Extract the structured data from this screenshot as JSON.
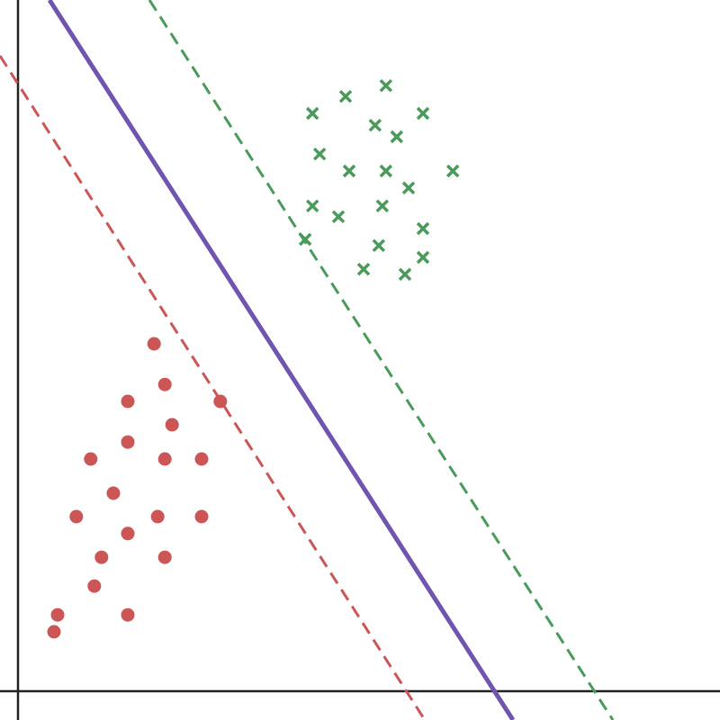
{
  "chart_data": {
    "type": "scatter",
    "xlim": [
      -0.5,
      19.5
    ],
    "ylim": [
      -0.8,
      19.2
    ],
    "axes_through_origin": true,
    "series": [
      {
        "marker": "circle",
        "color": "#cc5555",
        "x": [
          3.78,
          4.08,
          3.05,
          5.62,
          4.28,
          3.05,
          2.02,
          4.08,
          5.1,
          2.65,
          1.62,
          3.88,
          5.1,
          3.05,
          2.32,
          4.08,
          2.12,
          1.1,
          3.05,
          1.0
        ],
        "values": [
          9.65,
          8.52,
          8.05,
          8.05,
          7.4,
          6.92,
          6.45,
          6.45,
          6.45,
          5.5,
          4.85,
          4.85,
          4.85,
          4.38,
          3.72,
          3.72,
          2.92,
          2.12,
          2.12,
          1.65
        ]
      },
      {
        "marker": "cross",
        "color": "#4a9a5a",
        "x": [
          10.22,
          9.1,
          8.18,
          11.25,
          9.92,
          10.52,
          8.38,
          9.2,
          10.22,
          12.08,
          10.85,
          8.18,
          8.9,
          10.12,
          11.25,
          7.98,
          10.02,
          11.25,
          9.6,
          10.75
        ],
        "values": [
          16.82,
          16.52,
          16.05,
          16.05,
          15.72,
          15.4,
          14.92,
          14.45,
          14.45,
          14.45,
          13.98,
          13.48,
          13.18,
          13.48,
          12.85,
          12.55,
          12.38,
          12.05,
          11.72,
          11.58
        ]
      },
      {
        "marker": "line",
        "color": "#cc5555",
        "dashed": true,
        "width": 3,
        "x": [
          -0.5,
          11.3
        ],
        "values": [
          17.65,
          -0.8
        ]
      },
      {
        "marker": "line",
        "color": "#7055b0",
        "dashed": false,
        "width": 5,
        "x": [
          0.875,
          13.75
        ],
        "values": [
          19.2,
          -0.8
        ]
      },
      {
        "marker": "line",
        "color": "#4a9a5a",
        "dashed": true,
        "width": 3,
        "x": [
          3.65,
          16.525
        ],
        "values": [
          19.2,
          -0.8
        ]
      }
    ]
  }
}
